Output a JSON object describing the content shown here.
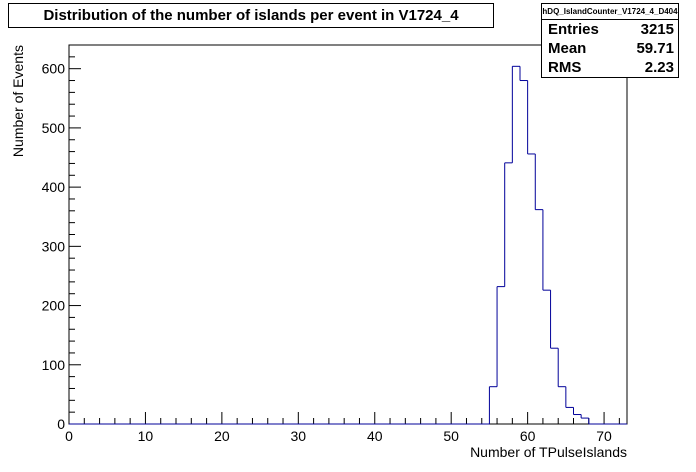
{
  "chart_data": {
    "type": "histogram",
    "title": "Distribution of the number of islands per event in V1724_4",
    "xlabel": "Number of TPulseIslands",
    "ylabel": "Number of Events",
    "xlim": [
      0,
      73
    ],
    "ylim": [
      0,
      640
    ],
    "x_ticks": [
      0,
      10,
      20,
      30,
      40,
      50,
      60,
      70
    ],
    "y_ticks": [
      0,
      100,
      200,
      300,
      400,
      500,
      600
    ],
    "bin_width": 1,
    "bin_low_edges": [
      55,
      56,
      57,
      58,
      59,
      60,
      61,
      62,
      63,
      64,
      65,
      66,
      67
    ],
    "values": [
      63,
      232,
      441,
      604,
      580,
      456,
      362,
      226,
      128,
      63,
      28,
      16,
      10
    ],
    "line_color": "#000099",
    "grid": false,
    "stats": {
      "name": "hDQ_IslandCounter_V1724_4_D404",
      "rows": [
        {
          "label": "Entries",
          "value": "3215"
        },
        {
          "label": "Mean",
          "value": "59.71"
        },
        {
          "label": "RMS",
          "value": "2.23"
        }
      ]
    }
  }
}
